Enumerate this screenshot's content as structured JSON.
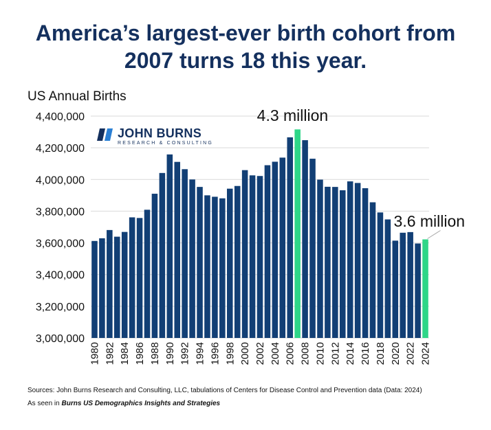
{
  "title_line1": "America’s largest-ever birth cohort from",
  "title_line2": "2007 turns 18 this year.",
  "logo": {
    "name": "JOHN BURNS",
    "sub": "RESEARCH & CONSULTING"
  },
  "annotations": {
    "peak": "4.3 million",
    "latest": "3.6 million"
  },
  "footer": {
    "source": "Sources: John Burns Research and Consulting, LLC, tabulations of Centers for Disease Control and Prevention data (Data: 2024)",
    "seen_prefix": "As seen in ",
    "seen_pub": "Burns US Demographics Insights and Strategies"
  },
  "colors": {
    "bar": "#123f75",
    "highlight": "#2ed688",
    "title": "#14305e"
  },
  "chart_data": {
    "type": "bar",
    "ylabel": "US Annual Births",
    "xlabel": "",
    "ylim": [
      3000000,
      4400000
    ],
    "yticks": [
      "3,000,000",
      "3,200,000",
      "3,400,000",
      "3,600,000",
      "3,800,000",
      "4,000,000",
      "4,200,000",
      "4,400,000"
    ],
    "ytick_values": [
      3000000,
      3200000,
      3400000,
      3600000,
      3800000,
      4000000,
      4200000,
      4400000
    ],
    "grid": "horizontal",
    "categories": [
      "1980",
      "1981",
      "1982",
      "1983",
      "1984",
      "1985",
      "1986",
      "1987",
      "1988",
      "1989",
      "1990",
      "1991",
      "1992",
      "1993",
      "1994",
      "1995",
      "1996",
      "1997",
      "1998",
      "1999",
      "2000",
      "2001",
      "2002",
      "2003",
      "2004",
      "2005",
      "2006",
      "2007",
      "2008",
      "2009",
      "2010",
      "2011",
      "2012",
      "2013",
      "2014",
      "2015",
      "2016",
      "2017",
      "2018",
      "2019",
      "2020",
      "2021",
      "2022",
      "2023",
      "2024"
    ],
    "xtick_labels": [
      "1980",
      "",
      "1982",
      "",
      "1984",
      "",
      "1986",
      "",
      "1988",
      "",
      "1990",
      "",
      "1992",
      "",
      "1994",
      "",
      "1996",
      "",
      "1998",
      "",
      "2000",
      "",
      "2002",
      "",
      "2004",
      "",
      "2006",
      "",
      "2008",
      "",
      "2010",
      "",
      "2012",
      "",
      "2014",
      "",
      "2016",
      "",
      "2018",
      "",
      "2020",
      "",
      "2022",
      "",
      "2024"
    ],
    "values": [
      3612000,
      3629000,
      3681000,
      3639000,
      3669000,
      3761000,
      3757000,
      3809000,
      3910000,
      4041000,
      4158000,
      4111000,
      4065000,
      4000000,
      3953000,
      3900000,
      3891000,
      3881000,
      3942000,
      3959000,
      4059000,
      4026000,
      4022000,
      4090000,
      4112000,
      4138000,
      4266000,
      4316000,
      4248000,
      4131000,
      3999000,
      3954000,
      3953000,
      3932000,
      3988000,
      3978000,
      3945000,
      3856000,
      3792000,
      3748000,
      3614000,
      3664000,
      3668000,
      3596000,
      3622000
    ],
    "highlight": [
      "2007",
      "2024"
    ]
  }
}
